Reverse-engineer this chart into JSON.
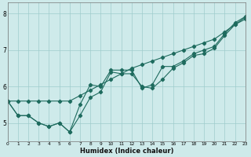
{
  "xlabel": "Humidex (Indice chaleur)",
  "x": [
    0,
    1,
    2,
    3,
    4,
    5,
    6,
    7,
    8,
    9,
    10,
    11,
    12,
    13,
    14,
    15,
    16,
    17,
    18,
    19,
    20,
    21,
    22,
    23
  ],
  "line_straight": [
    5.6,
    5.6,
    5.6,
    5.6,
    5.6,
    5.6,
    5.6,
    5.75,
    5.9,
    6.05,
    6.2,
    6.35,
    6.5,
    6.6,
    6.7,
    6.8,
    6.9,
    7.0,
    7.1,
    7.2,
    7.3,
    7.5,
    7.7,
    7.9
  ],
  "line_mid": [
    5.6,
    5.2,
    5.2,
    5.0,
    4.9,
    5.0,
    4.75,
    5.2,
    5.7,
    5.85,
    6.4,
    6.35,
    6.35,
    6.0,
    5.95,
    6.2,
    6.5,
    6.65,
    6.85,
    6.9,
    7.05,
    7.4,
    7.7,
    7.85
  ],
  "line_top": [
    5.6,
    5.2,
    5.2,
    5.0,
    4.9,
    5.0,
    4.75,
    5.5,
    6.05,
    6.0,
    6.45,
    6.45,
    6.45,
    5.95,
    6.05,
    6.55,
    6.55,
    6.7,
    6.9,
    7.0,
    7.1,
    7.45,
    7.75,
    7.92
  ],
  "line_color": "#1e6b5e",
  "bg_color": "#ceeaea",
  "grid_color": "#a0cccc",
  "ylim": [
    4.5,
    8.3
  ],
  "xlim": [
    0,
    23
  ],
  "yticks": [
    5,
    6,
    7,
    8
  ],
  "xticks": [
    0,
    1,
    2,
    3,
    4,
    5,
    6,
    7,
    8,
    9,
    10,
    11,
    12,
    13,
    14,
    15,
    16,
    17,
    18,
    19,
    20,
    21,
    22,
    23
  ]
}
